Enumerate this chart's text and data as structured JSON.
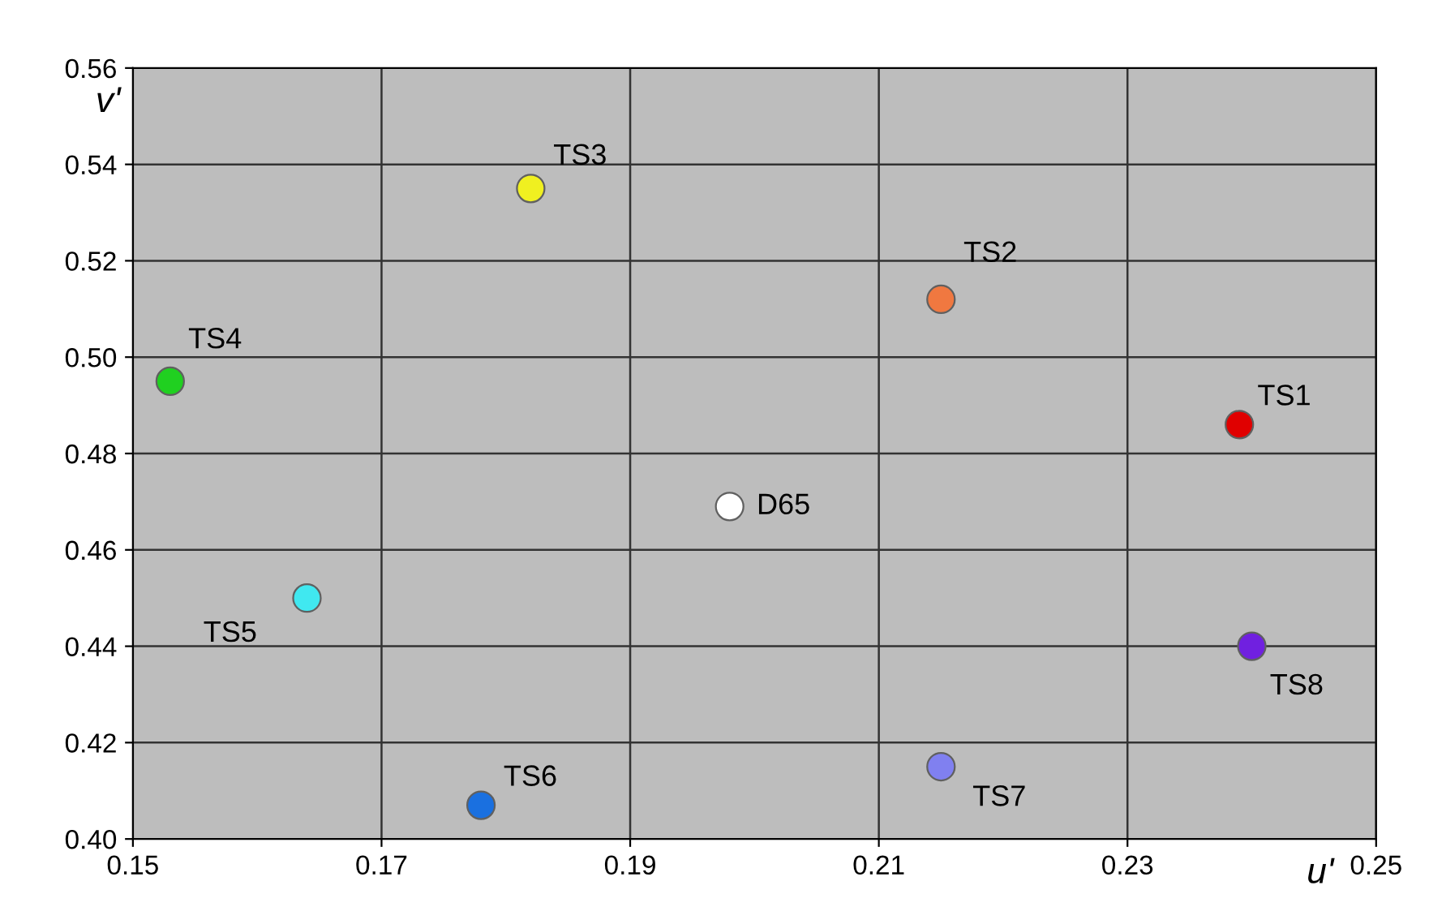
{
  "chart_data": {
    "type": "scatter",
    "xlabel": "u'",
    "ylabel": "v'",
    "xlim": [
      0.15,
      0.25
    ],
    "ylim": [
      0.4,
      0.56
    ],
    "xticks": [
      {
        "value": 0.15,
        "label": "0.15"
      },
      {
        "value": 0.17,
        "label": "0.17"
      },
      {
        "value": 0.19,
        "label": "0.19"
      },
      {
        "value": 0.21,
        "label": "0.21"
      },
      {
        "value": 0.23,
        "label": "0.23"
      },
      {
        "value": 0.25,
        "label": "0.25"
      }
    ],
    "yticks": [
      {
        "value": 0.4,
        "label": "0.40"
      },
      {
        "value": 0.42,
        "label": "0.42"
      },
      {
        "value": 0.44,
        "label": "0.44"
      },
      {
        "value": 0.46,
        "label": "0.46"
      },
      {
        "value": 0.48,
        "label": "0.48"
      },
      {
        "value": 0.5,
        "label": "0.50"
      },
      {
        "value": 0.52,
        "label": "0.52"
      },
      {
        "value": 0.54,
        "label": "0.54"
      },
      {
        "value": 0.56,
        "label": "0.56"
      }
    ],
    "grid": true,
    "marker": "circle",
    "legend": false,
    "series": [
      {
        "name": "TS1",
        "color": "#e00000",
        "x": [
          0.239
        ],
        "values": [
          0.486
        ]
      },
      {
        "name": "TS2",
        "color": "#f07840",
        "x": [
          0.215
        ],
        "values": [
          0.512
        ]
      },
      {
        "name": "TS3",
        "color": "#f0f020",
        "x": [
          0.182
        ],
        "values": [
          0.535
        ]
      },
      {
        "name": "TS4",
        "color": "#20d020",
        "x": [
          0.153
        ],
        "values": [
          0.495
        ]
      },
      {
        "name": "D65",
        "color": "#ffffff",
        "x": [
          0.198
        ],
        "values": [
          0.469
        ]
      },
      {
        "name": "TS5",
        "color": "#40e8f0",
        "x": [
          0.164
        ],
        "values": [
          0.45
        ]
      },
      {
        "name": "TS6",
        "color": "#1a70e0",
        "x": [
          0.178
        ],
        "values": [
          0.407
        ]
      },
      {
        "name": "TS7",
        "color": "#8080f0",
        "x": [
          0.215
        ],
        "values": [
          0.415
        ]
      },
      {
        "name": "TS8",
        "color": "#7020e0",
        "x": [
          0.24
        ],
        "values": [
          0.44
        ]
      }
    ]
  }
}
